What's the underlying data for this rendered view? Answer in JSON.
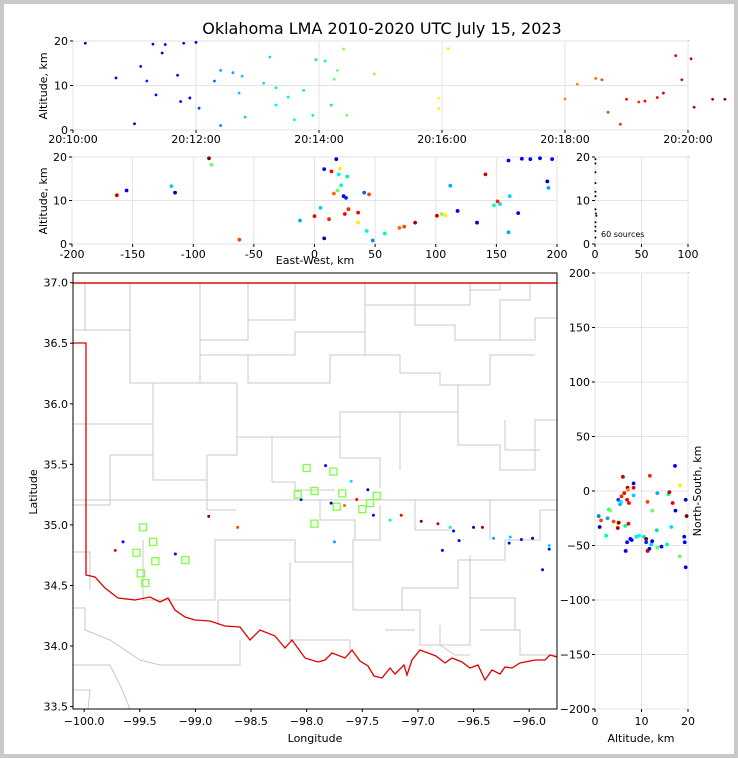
{
  "title": "Oklahoma LMA 2010-2020 UTC July 15, 2023",
  "source_count_label": "60 sources",
  "chart_data": [
    {
      "panel": "altitude-vs-time",
      "type": "scatter",
      "xlabel": "",
      "ylabel": "Altitude, km",
      "xticks": [
        "20:10:00",
        "20:12:00",
        "20:14:00",
        "20:16:00",
        "20:18:00",
        "20:20:00"
      ],
      "xlim_minutes": [
        0,
        10
      ],
      "ylim": [
        0,
        20
      ],
      "yticks": [
        0,
        10,
        20
      ],
      "grid": true,
      "points": [
        [
          0.2,
          19.5,
          "#0000cc"
        ],
        [
          0.7,
          11.7,
          "#0000ff"
        ],
        [
          1.0,
          1.4,
          "#0000aa"
        ],
        [
          1.1,
          14.3,
          "#0000ff"
        ],
        [
          1.2,
          11.0,
          "#0022ff"
        ],
        [
          1.3,
          19.3,
          "#0000ff"
        ],
        [
          1.35,
          7.9,
          "#0000ff"
        ],
        [
          1.45,
          17.3,
          "#0000cc"
        ],
        [
          1.5,
          19.2,
          "#0000ff"
        ],
        [
          1.7,
          12.3,
          "#0000ff"
        ],
        [
          1.75,
          6.4,
          "#0000ff"
        ],
        [
          1.8,
          19.5,
          "#0000ff"
        ],
        [
          1.9,
          7.2,
          "#0000ff"
        ],
        [
          2.0,
          19.7,
          "#0000ff"
        ],
        [
          2.05,
          4.9,
          "#0044ff"
        ],
        [
          2.3,
          11.0,
          "#0066ff"
        ],
        [
          2.4,
          1.0,
          "#0088ff"
        ],
        [
          2.4,
          13.4,
          "#00aaff"
        ],
        [
          2.6,
          12.9,
          "#00aaff"
        ],
        [
          2.7,
          8.3,
          "#00ccff"
        ],
        [
          2.75,
          12.1,
          "#00ccff"
        ],
        [
          2.8,
          2.9,
          "#00ccff"
        ],
        [
          3.1,
          10.5,
          "#00ddff"
        ],
        [
          3.2,
          16.4,
          "#00ddff"
        ],
        [
          3.3,
          5.6,
          "#00eeff"
        ],
        [
          3.3,
          9.5,
          "#00eeee"
        ],
        [
          3.5,
          7.4,
          "#00eeff"
        ],
        [
          3.6,
          2.3,
          "#00ffcc"
        ],
        [
          3.75,
          8.9,
          "#00ffaa"
        ],
        [
          3.9,
          3.3,
          "#00ffaa"
        ],
        [
          3.95,
          15.8,
          "#00ff99"
        ],
        [
          4.1,
          15.5,
          "#00ff99"
        ],
        [
          4.2,
          5.6,
          "#00ff88"
        ],
        [
          4.25,
          11.4,
          "#66ff66"
        ],
        [
          4.3,
          13.4,
          "#66ff66"
        ],
        [
          4.4,
          18.2,
          "#88ff44"
        ],
        [
          4.45,
          3.3,
          "#88ff44"
        ],
        [
          4.9,
          12.6,
          "#88ff44"
        ],
        [
          5.95,
          7.1,
          "#ffff00"
        ],
        [
          5.95,
          4.8,
          "#ffee00"
        ],
        [
          6.1,
          18.3,
          "#ffee00"
        ],
        [
          8.0,
          7.0,
          "#ff8800"
        ],
        [
          8.2,
          10.3,
          "#ff8800"
        ],
        [
          8.5,
          11.6,
          "#ff6600"
        ],
        [
          8.6,
          11.3,
          "#ff4400"
        ],
        [
          8.7,
          4.0,
          "#ff4400"
        ],
        [
          8.9,
          1.3,
          "#ff2200"
        ],
        [
          9.0,
          6.9,
          "#ff0000"
        ],
        [
          9.2,
          6.3,
          "#ff2200"
        ],
        [
          9.3,
          6.5,
          "#ff0000"
        ],
        [
          9.5,
          7.3,
          "#ff0000"
        ],
        [
          9.6,
          8.3,
          "#ee0000"
        ],
        [
          9.8,
          16.7,
          "#ee0000"
        ],
        [
          9.9,
          11.3,
          "#dd0000"
        ],
        [
          10.05,
          16.0,
          "#cc0000"
        ],
        [
          10.1,
          5.1,
          "#aa0000"
        ],
        [
          10.4,
          6.9,
          "#aa0000"
        ],
        [
          10.6,
          6.9,
          "#880000"
        ],
        [
          10.9,
          19.7,
          "#880000"
        ]
      ]
    },
    {
      "panel": "altitude-vs-east-west",
      "type": "scatter",
      "xlabel": "East-West, km",
      "ylabel": "Altitude, km",
      "xlim": [
        -200,
        200
      ],
      "xticks": [
        -200,
        -150,
        -100,
        -50,
        0,
        50,
        100,
        150,
        200
      ],
      "ylim": [
        0,
        20
      ],
      "yticks": [
        0,
        10,
        20
      ],
      "grid": true,
      "points": [
        [
          -163,
          11.2,
          "#cc0000"
        ],
        [
          -155,
          12.3,
          "#0000ff"
        ],
        [
          -118,
          13.3,
          "#00ddbb"
        ],
        [
          -115,
          11.8,
          "#0000aa"
        ],
        [
          -87,
          19.7,
          "#880000"
        ],
        [
          -85,
          18.2,
          "#66ff66"
        ],
        [
          -62,
          1.0,
          "#ff4400"
        ],
        [
          -12,
          5.4,
          "#00aaff"
        ],
        [
          0,
          6.4,
          "#ff0000"
        ],
        [
          5,
          8.3,
          "#00ccff"
        ],
        [
          8,
          17.2,
          "#0000ff"
        ],
        [
          8,
          1.3,
          "#0000aa"
        ],
        [
          12,
          5.7,
          "#ff2200"
        ],
        [
          14,
          16.7,
          "#ff0000"
        ],
        [
          16,
          11.6,
          "#ff6600"
        ],
        [
          18,
          19.5,
          "#0000cc"
        ],
        [
          19,
          12.3,
          "#66ff66"
        ],
        [
          20,
          16.0,
          "#00eeff"
        ],
        [
          21,
          17.3,
          "#ffee00"
        ],
        [
          22,
          13.5,
          "#00ffaa"
        ],
        [
          24,
          11.0,
          "#0000ff"
        ],
        [
          25,
          6.9,
          "#ff0000"
        ],
        [
          26,
          10.6,
          "#0022ff"
        ],
        [
          27,
          15.5,
          "#00ff99"
        ],
        [
          28,
          8.0,
          "#ff2200"
        ],
        [
          36,
          7.2,
          "#ff0000"
        ],
        [
          36,
          4.9,
          "#ffee00"
        ],
        [
          41,
          11.8,
          "#0066ff"
        ],
        [
          43,
          3.0,
          "#00ffcc"
        ],
        [
          45,
          11.4,
          "#ff4400"
        ],
        [
          48,
          0.8,
          "#0088ff"
        ],
        [
          58,
          2.4,
          "#00ffaa"
        ],
        [
          70,
          3.7,
          "#ff6600"
        ],
        [
          74,
          4.0,
          "#ff4400"
        ],
        [
          83,
          4.9,
          "#aa0000"
        ],
        [
          101,
          6.5,
          "#cc0000"
        ],
        [
          105,
          6.9,
          "#88ff44"
        ],
        [
          108,
          6.6,
          "#ffee00"
        ],
        [
          112,
          13.4,
          "#00aaff"
        ],
        [
          118,
          7.6,
          "#0000ff"
        ],
        [
          134,
          4.9,
          "#0000cc"
        ],
        [
          141,
          16.0,
          "#cc0000"
        ],
        [
          148,
          8.9,
          "#00ffcc"
        ],
        [
          151,
          9.8,
          "#ff2200"
        ],
        [
          153,
          9.2,
          "#00ddff"
        ],
        [
          160,
          19.2,
          "#0000ff"
        ],
        [
          160,
          2.7,
          "#00aaff"
        ],
        [
          161,
          11.0,
          "#00ccff"
        ],
        [
          168,
          7.1,
          "#0000ff"
        ],
        [
          171,
          19.6,
          "#0000ff"
        ],
        [
          178,
          19.5,
          "#0000ff"
        ],
        [
          186,
          19.7,
          "#0000ff"
        ],
        [
          192,
          14.4,
          "#0000aa"
        ],
        [
          193,
          12.9,
          "#00aaff"
        ],
        [
          196,
          19.5,
          "#0000ff"
        ]
      ]
    },
    {
      "panel": "altitude-histogram",
      "type": "scatter",
      "xlim": [
        0,
        100
      ],
      "xticks": [
        0,
        50,
        100
      ],
      "ylim": [
        0,
        20
      ],
      "yticks": [
        0,
        10,
        20
      ],
      "grid": true,
      "points": [
        [
          0.5,
          19.5
        ],
        [
          0.5,
          18.5
        ],
        [
          0.5,
          16.5
        ],
        [
          0.5,
          14.0
        ],
        [
          0.5,
          12.0
        ],
        [
          0.5,
          11.0
        ],
        [
          0.5,
          8.0
        ],
        [
          1,
          7.0
        ],
        [
          1.5,
          6.5
        ],
        [
          0.5,
          5.0
        ],
        [
          0.5,
          4.0
        ],
        [
          0.5,
          3.0
        ],
        [
          0.5,
          1.5
        ]
      ]
    },
    {
      "panel": "plan-view",
      "type": "scatter",
      "xlabel": "Longitude",
      "ylabel": "Latitude",
      "xlim": [
        -100.1,
        -95.75
      ],
      "ylim": [
        33.48,
        37.08
      ],
      "xticks": [
        -100.0,
        -99.5,
        -99.0,
        -98.5,
        -98.0,
        -97.5,
        -97.0,
        -96.5,
        -96.0
      ],
      "yticks": [
        33.5,
        34.0,
        34.5,
        35.0,
        35.5,
        36.0,
        36.5,
        37.0
      ],
      "points": [
        [
          -99.72,
          34.79,
          "#ff0000"
        ],
        [
          -99.65,
          34.86,
          "#0000ff"
        ],
        [
          -99.18,
          34.76,
          "#0000ff"
        ],
        [
          -98.88,
          35.07,
          "#880000"
        ],
        [
          -98.62,
          34.98,
          "#ff4400"
        ],
        [
          -98.05,
          35.21,
          "#0000ff"
        ],
        [
          -97.83,
          35.49,
          "#0000ff"
        ],
        [
          -97.78,
          35.18,
          "#0000aa"
        ],
        [
          -97.75,
          34.86,
          "#00aaff"
        ],
        [
          -97.66,
          35.16,
          "#ff6600"
        ],
        [
          -97.6,
          35.36,
          "#00ddff"
        ],
        [
          -97.55,
          35.21,
          "#ff0000"
        ],
        [
          -97.45,
          35.29,
          "#0000ff"
        ],
        [
          -97.4,
          35.08,
          "#0000ff"
        ],
        [
          -97.25,
          35.04,
          "#00ffaa"
        ],
        [
          -97.15,
          35.08,
          "#ff0000"
        ],
        [
          -96.97,
          35.03,
          "#880000"
        ],
        [
          -96.82,
          35.01,
          "#cc0000"
        ],
        [
          -96.78,
          34.79,
          "#0000ff"
        ],
        [
          -96.71,
          34.98,
          "#00ff99"
        ],
        [
          -96.68,
          34.95,
          "#0000ff"
        ],
        [
          -96.63,
          34.87,
          "#0000ff"
        ],
        [
          -96.5,
          34.98,
          "#0000cc"
        ],
        [
          -96.42,
          34.98,
          "#aa0000"
        ],
        [
          -96.32,
          34.89,
          "#00aaff"
        ],
        [
          -96.18,
          34.85,
          "#0000ff"
        ],
        [
          -96.17,
          34.9,
          "#00ccff"
        ],
        [
          -96.07,
          34.88,
          "#0000ff"
        ],
        [
          -95.97,
          34.89,
          "#0000aa"
        ],
        [
          -95.88,
          34.63,
          "#0000ff"
        ],
        [
          -95.82,
          34.8,
          "#0000ff"
        ],
        [
          -95.82,
          34.83,
          "#00ddff"
        ]
      ],
      "stations": [
        [
          -99.47,
          34.98
        ],
        [
          -99.38,
          34.86
        ],
        [
          -99.53,
          34.77
        ],
        [
          -99.36,
          34.7
        ],
        [
          -99.49,
          34.6
        ],
        [
          -99.45,
          34.52
        ],
        [
          -99.09,
          34.71
        ],
        [
          -98.08,
          35.25
        ],
        [
          -98.0,
          35.47
        ],
        [
          -97.93,
          35.28
        ],
        [
          -97.93,
          35.01
        ],
        [
          -97.76,
          35.44
        ],
        [
          -97.73,
          35.15
        ],
        [
          -97.68,
          35.26
        ],
        [
          -97.5,
          35.13
        ],
        [
          -97.43,
          35.18
        ],
        [
          -97.37,
          35.24
        ]
      ]
    },
    {
      "panel": "north-south-vs-altitude",
      "type": "scatter",
      "xlabel": "Altitude, km",
      "ylabel": "North-South, km",
      "xlim": [
        0,
        20
      ],
      "xticks": [
        0,
        10,
        20
      ],
      "ylim": [
        -200,
        200
      ],
      "yticks": [
        -200,
        -150,
        -100,
        -50,
        0,
        50,
        100,
        150,
        200
      ],
      "grid": true,
      "points": [
        [
          0.8,
          -23,
          "#0088ff"
        ],
        [
          1.0,
          -33,
          "#0000aa"
        ],
        [
          1.3,
          -27,
          "#ff4400"
        ],
        [
          2.4,
          -41,
          "#00ffaa"
        ],
        [
          2.7,
          -25,
          "#00aaff"
        ],
        [
          3.0,
          -17,
          "#00ffcc"
        ],
        [
          3.3,
          -18,
          "#88ff44"
        ],
        [
          4.0,
          -28,
          "#ff4400"
        ],
        [
          4.9,
          -34,
          "#aa0000"
        ],
        [
          4.9,
          -30,
          "#ffee00"
        ],
        [
          5.0,
          -8,
          "#0044ff"
        ],
        [
          5.1,
          -29,
          "#880000"
        ],
        [
          5.4,
          -12,
          "#00aaff"
        ],
        [
          5.6,
          -10,
          "#00eeff"
        ],
        [
          5.7,
          -5,
          "#ff2200"
        ],
        [
          6.0,
          13,
          "#cc0000"
        ],
        [
          6.3,
          -2,
          "#ff0000"
        ],
        [
          6.5,
          -32,
          "#00ff88"
        ],
        [
          6.6,
          -55,
          "#0000ff"
        ],
        [
          6.9,
          -8,
          "#ff0000"
        ],
        [
          6.9,
          -47,
          "#0000ff"
        ],
        [
          7.0,
          3,
          "#aa0000"
        ],
        [
          7.1,
          1,
          "#ff8800"
        ],
        [
          7.2,
          -30,
          "#ff0000"
        ],
        [
          7.3,
          -11,
          "#ff0000"
        ],
        [
          7.6,
          -44,
          "#0000ff"
        ],
        [
          7.9,
          -45,
          "#0000ff"
        ],
        [
          8.3,
          -4,
          "#00ccff"
        ],
        [
          8.3,
          3,
          "#ee0000"
        ],
        [
          8.3,
          7,
          "#0000ff"
        ],
        [
          8.9,
          -42,
          "#00eeee"
        ],
        [
          9.5,
          -41,
          "#00ffcc"
        ],
        [
          10.5,
          -42,
          "#00ddff"
        ],
        [
          11.0,
          -47,
          "#0022ff"
        ],
        [
          11.0,
          -44,
          "#880000"
        ],
        [
          11.3,
          -55,
          "#dd0000"
        ],
        [
          11.3,
          -10,
          "#ff4400"
        ],
        [
          11.7,
          -53,
          "#0000ff"
        ],
        [
          11.8,
          14,
          "#ff2200"
        ],
        [
          12.1,
          -49,
          "#00ccff"
        ],
        [
          12.3,
          -46,
          "#0000ff"
        ],
        [
          12.3,
          -18,
          "#66ff66"
        ],
        [
          13.3,
          -36,
          "#00ddbb"
        ],
        [
          13.4,
          -2,
          "#00aaff"
        ],
        [
          13.4,
          -52,
          "#66ff66"
        ],
        [
          14.3,
          -51,
          "#0000ff"
        ],
        [
          15.5,
          -49,
          "#00ff99"
        ],
        [
          15.8,
          -3,
          "#00ff99"
        ],
        [
          16.0,
          -1,
          "#cc0000"
        ],
        [
          16.4,
          -33,
          "#00ddff"
        ],
        [
          16.7,
          -11,
          "#ee0000"
        ],
        [
          17.2,
          23,
          "#0000ff"
        ],
        [
          17.3,
          -18,
          "#0000cc"
        ],
        [
          18.2,
          -60,
          "#66ff66"
        ],
        [
          18.3,
          5,
          "#ffee00"
        ],
        [
          19.2,
          -42,
          "#0000ff"
        ],
        [
          19.3,
          -47,
          "#0000ff"
        ],
        [
          19.5,
          -70,
          "#0000ff"
        ],
        [
          19.5,
          -8,
          "#0000cc"
        ],
        [
          19.7,
          -23,
          "#880000"
        ]
      ]
    }
  ]
}
